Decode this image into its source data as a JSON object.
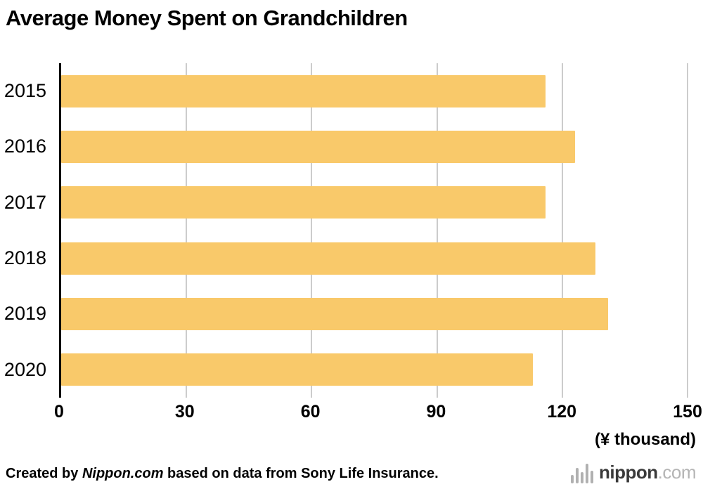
{
  "title": "Average Money Spent on Grandchildren",
  "chart_data": {
    "type": "bar",
    "orientation": "horizontal",
    "title": "Average Money Spent on Grandchildren",
    "categories": [
      "2015",
      "2016",
      "2017",
      "2018",
      "2019",
      "2020"
    ],
    "values": [
      116,
      123,
      116,
      128,
      131,
      113
    ],
    "xlim": [
      0,
      150
    ],
    "xticks": [
      0,
      30,
      60,
      90,
      120,
      150
    ],
    "xlabel": "(¥ thousand)",
    "ylabel": "",
    "grid": true,
    "legend": false,
    "bar_color": "#F9C96A",
    "gridline_color": "#cccccc",
    "axis_color": "#000000"
  },
  "footer": {
    "credit_prefix": "Created by ",
    "credit_source": "Nippon.com",
    "credit_suffix": " based on data from Sony Life Insurance.",
    "logo_text": "nippon",
    "logo_suffix": ".com"
  }
}
